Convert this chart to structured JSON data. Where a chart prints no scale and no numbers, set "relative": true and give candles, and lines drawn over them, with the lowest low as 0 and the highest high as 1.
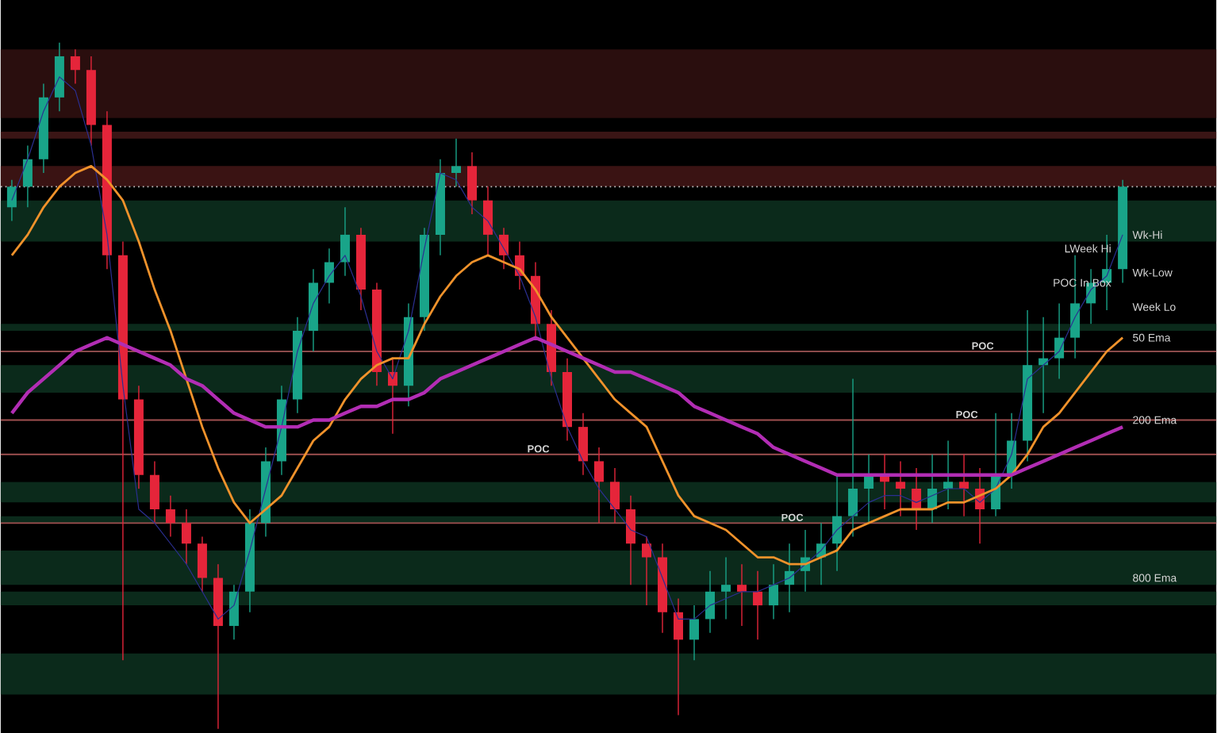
{
  "chart_data": {
    "type": "candlestick",
    "relative": true,
    "categories": [
      null,
      null,
      null,
      null,
      null,
      null,
      null,
      null,
      null,
      null,
      null,
      null,
      null,
      null,
      null,
      null,
      null,
      null,
      null,
      null,
      null,
      null,
      null,
      null,
      null,
      null,
      null,
      null,
      null,
      null,
      null,
      null,
      null,
      null,
      null,
      null,
      null,
      null,
      null,
      null,
      null,
      null,
      null,
      null,
      null,
      null,
      null,
      null,
      null,
      null,
      null,
      null,
      null,
      null,
      null,
      null,
      null,
      null,
      null,
      null,
      null,
      null,
      null,
      null,
      null,
      null,
      null,
      null,
      null,
      null,
      null
    ],
    "ohlc": [
      [
        0.76,
        0.8,
        0.74,
        0.79
      ],
      [
        0.79,
        0.85,
        0.76,
        0.83
      ],
      [
        0.83,
        0.94,
        0.81,
        0.92
      ],
      [
        0.92,
        1.0,
        0.9,
        0.98
      ],
      [
        0.98,
        0.99,
        0.94,
        0.96
      ],
      [
        0.96,
        0.98,
        0.85,
        0.88
      ],
      [
        0.88,
        0.9,
        0.67,
        0.69
      ],
      [
        0.69,
        0.71,
        0.1,
        0.48
      ],
      [
        0.48,
        0.5,
        0.35,
        0.37
      ],
      [
        0.37,
        0.39,
        0.3,
        0.32
      ],
      [
        0.32,
        0.34,
        0.28,
        0.3
      ],
      [
        0.3,
        0.32,
        0.24,
        0.27
      ],
      [
        0.27,
        0.28,
        0.2,
        0.22
      ],
      [
        0.22,
        0.24,
        0.0,
        0.15
      ],
      [
        0.15,
        0.21,
        0.13,
        0.2
      ],
      [
        0.2,
        0.32,
        0.17,
        0.3
      ],
      [
        0.3,
        0.41,
        0.28,
        0.39
      ],
      [
        0.39,
        0.5,
        0.37,
        0.48
      ],
      [
        0.48,
        0.6,
        0.46,
        0.58
      ],
      [
        0.58,
        0.67,
        0.55,
        0.65
      ],
      [
        0.65,
        0.7,
        0.62,
        0.68
      ],
      [
        0.68,
        0.76,
        0.66,
        0.72
      ],
      [
        0.72,
        0.73,
        0.61,
        0.64
      ],
      [
        0.64,
        0.65,
        0.5,
        0.52
      ],
      [
        0.52,
        0.54,
        0.43,
        0.5
      ],
      [
        0.5,
        0.62,
        0.47,
        0.6
      ],
      [
        0.6,
        0.73,
        0.58,
        0.72
      ],
      [
        0.72,
        0.83,
        0.69,
        0.81
      ],
      [
        0.81,
        0.86,
        0.79,
        0.82
      ],
      [
        0.82,
        0.84,
        0.75,
        0.77
      ],
      [
        0.77,
        0.79,
        0.69,
        0.72
      ],
      [
        0.72,
        0.73,
        0.67,
        0.69
      ],
      [
        0.69,
        0.71,
        0.64,
        0.66
      ],
      [
        0.66,
        0.68,
        0.57,
        0.59
      ],
      [
        0.59,
        0.61,
        0.5,
        0.52
      ],
      [
        0.52,
        0.54,
        0.42,
        0.44
      ],
      [
        0.44,
        0.46,
        0.37,
        0.39
      ],
      [
        0.39,
        0.41,
        0.3,
        0.36
      ],
      [
        0.36,
        0.38,
        0.3,
        0.32
      ],
      [
        0.32,
        0.34,
        0.21,
        0.27
      ],
      [
        0.27,
        0.28,
        0.18,
        0.25
      ],
      [
        0.25,
        0.27,
        0.14,
        0.17
      ],
      [
        0.17,
        0.19,
        0.02,
        0.13
      ],
      [
        0.13,
        0.18,
        0.1,
        0.16
      ],
      [
        0.16,
        0.23,
        0.14,
        0.2
      ],
      [
        0.2,
        0.25,
        0.16,
        0.21
      ],
      [
        0.21,
        0.24,
        0.15,
        0.2
      ],
      [
        0.2,
        0.23,
        0.13,
        0.18
      ],
      [
        0.18,
        0.24,
        0.16,
        0.21
      ],
      [
        0.21,
        0.27,
        0.17,
        0.23
      ],
      [
        0.23,
        0.29,
        0.2,
        0.25
      ],
      [
        0.25,
        0.3,
        0.21,
        0.27
      ],
      [
        0.27,
        0.37,
        0.23,
        0.31
      ],
      [
        0.31,
        0.51,
        0.28,
        0.35
      ],
      [
        0.35,
        0.4,
        0.3,
        0.37
      ],
      [
        0.37,
        0.4,
        0.32,
        0.36
      ],
      [
        0.36,
        0.39,
        0.31,
        0.35
      ],
      [
        0.35,
        0.38,
        0.29,
        0.32
      ],
      [
        0.32,
        0.4,
        0.3,
        0.35
      ],
      [
        0.35,
        0.42,
        0.32,
        0.36
      ],
      [
        0.36,
        0.4,
        0.31,
        0.35
      ],
      [
        0.35,
        0.38,
        0.27,
        0.32
      ],
      [
        0.32,
        0.46,
        0.31,
        0.37
      ],
      [
        0.37,
        0.46,
        0.35,
        0.42
      ],
      [
        0.42,
        0.61,
        0.39,
        0.53
      ],
      [
        0.53,
        0.6,
        0.46,
        0.54
      ],
      [
        0.54,
        0.62,
        0.51,
        0.57
      ],
      [
        0.57,
        0.69,
        0.54,
        0.62
      ],
      [
        0.62,
        0.67,
        0.59,
        0.65
      ],
      [
        0.65,
        0.72,
        0.61,
        0.67
      ],
      [
        0.67,
        0.8,
        0.65,
        0.79
      ]
    ],
    "series": [
      {
        "type": "line",
        "color": "#2b2f91",
        "values": [
          0.77,
          0.83,
          0.9,
          0.95,
          0.93,
          0.85,
          0.72,
          0.5,
          0.32,
          0.3,
          0.27,
          0.24,
          0.2,
          0.16,
          0.18,
          0.26,
          0.35,
          0.44,
          0.55,
          0.62,
          0.66,
          0.69,
          0.63,
          0.55,
          0.51,
          0.58,
          0.7,
          0.81,
          0.8,
          0.76,
          0.74,
          0.7,
          0.66,
          0.6,
          0.51,
          0.44,
          0.39,
          0.35,
          0.32,
          0.29,
          0.28,
          0.22,
          0.16,
          0.16,
          0.18,
          0.19,
          0.2,
          0.2,
          0.21,
          0.22,
          0.24,
          0.26,
          0.29,
          0.31,
          0.33,
          0.34,
          0.34,
          0.33,
          0.34,
          0.35,
          0.35,
          0.33,
          0.35,
          0.4,
          0.51,
          0.53,
          0.55,
          0.6,
          0.64,
          0.66,
          0.72
        ]
      },
      {
        "type": "line",
        "color": "#f0922b",
        "values": [
          0.69,
          0.72,
          0.76,
          0.79,
          0.81,
          0.82,
          0.8,
          0.77,
          0.71,
          0.64,
          0.58,
          0.51,
          0.44,
          0.38,
          0.33,
          0.3,
          0.32,
          0.34,
          0.38,
          0.42,
          0.44,
          0.48,
          0.51,
          0.53,
          0.54,
          0.54,
          0.59,
          0.63,
          0.66,
          0.68,
          0.69,
          0.68,
          0.67,
          0.64,
          0.6,
          0.57,
          0.54,
          0.51,
          0.48,
          0.46,
          0.44,
          0.39,
          0.34,
          0.31,
          0.3,
          0.29,
          0.27,
          0.25,
          0.25,
          0.24,
          0.24,
          0.25,
          0.26,
          0.29,
          0.3,
          0.31,
          0.32,
          0.32,
          0.32,
          0.33,
          0.33,
          0.34,
          0.35,
          0.37,
          0.4,
          0.44,
          0.46,
          0.49,
          0.52,
          0.55,
          0.57
        ]
      },
      {
        "type": "line",
        "color": "#b22db4",
        "values": [
          0.46,
          0.49,
          0.51,
          0.53,
          0.55,
          0.56,
          0.57,
          0.56,
          0.55,
          0.54,
          0.53,
          0.51,
          0.5,
          0.48,
          0.46,
          0.45,
          0.44,
          0.44,
          0.44,
          0.45,
          0.45,
          0.46,
          0.47,
          0.47,
          0.48,
          0.48,
          0.49,
          0.51,
          0.52,
          0.53,
          0.54,
          0.55,
          0.56,
          0.57,
          0.56,
          0.55,
          0.54,
          0.53,
          0.52,
          0.52,
          0.51,
          0.5,
          0.49,
          0.47,
          0.46,
          0.45,
          0.44,
          0.43,
          0.41,
          0.4,
          0.39,
          0.38,
          0.37,
          0.37,
          0.37,
          0.37,
          0.37,
          0.37,
          0.37,
          0.37,
          0.37,
          0.37,
          0.37,
          0.37,
          0.38,
          0.39,
          0.4,
          0.41,
          0.42,
          0.43,
          0.44
        ]
      }
    ],
    "bands": [
      {
        "axis": "y",
        "from": 0.89,
        "to": 0.99,
        "color": "#2a0e0e"
      },
      {
        "axis": "y",
        "from": 0.86,
        "to": 0.87,
        "color": "#3a1515"
      },
      {
        "axis": "y",
        "from": 0.79,
        "to": 0.82,
        "color": "#3a1313"
      },
      {
        "axis": "y",
        "from": 0.71,
        "to": 0.77,
        "color": "#0b2a1b"
      },
      {
        "axis": "y",
        "from": 0.58,
        "to": 0.59,
        "color": "#0b2a1b"
      },
      {
        "axis": "y",
        "from": 0.49,
        "to": 0.53,
        "color": "#0b2a1b"
      },
      {
        "axis": "y",
        "from": 0.33,
        "to": 0.36,
        "color": "#0b2a1b"
      },
      {
        "axis": "y",
        "from": 0.3,
        "to": 0.31,
        "color": "#0b2a1b"
      },
      {
        "axis": "y",
        "from": 0.21,
        "to": 0.26,
        "color": "#0b2a1b"
      },
      {
        "axis": "y",
        "from": 0.18,
        "to": 0.2,
        "color": "#0b2a1b"
      },
      {
        "axis": "y",
        "from": 0.05,
        "to": 0.11,
        "color": "#0b2a1b"
      }
    ],
    "ref_lines": [
      {
        "axis": "y",
        "value": 0.79,
        "color": "#bbbbbb",
        "line_style": "dotted"
      },
      {
        "axis": "y",
        "value": 0.55,
        "label": "POC",
        "color": "#8a4a4a"
      },
      {
        "axis": "y",
        "value": 0.45,
        "label": "POC",
        "color": "#a05050"
      },
      {
        "axis": "y",
        "value": 0.4,
        "label": "POC",
        "color": "#a05050"
      },
      {
        "axis": "y",
        "value": 0.3,
        "label": "POC",
        "color": "#a05050"
      }
    ],
    "annotations": [
      {
        "text": "Wk-Hi",
        "y": 0.72
      },
      {
        "text": "LWeek Hi",
        "y": 0.7
      },
      "Wk-Low",
      {
        "text": "POC In Box",
        "y": 0.65
      },
      "Week Lo",
      {
        "text": "50 Ema",
        "y": 0.57
      },
      {
        "text": "200 Ema",
        "y": 0.45
      },
      {
        "text": "800 Ema",
        "y": 0.22
      }
    ]
  }
}
